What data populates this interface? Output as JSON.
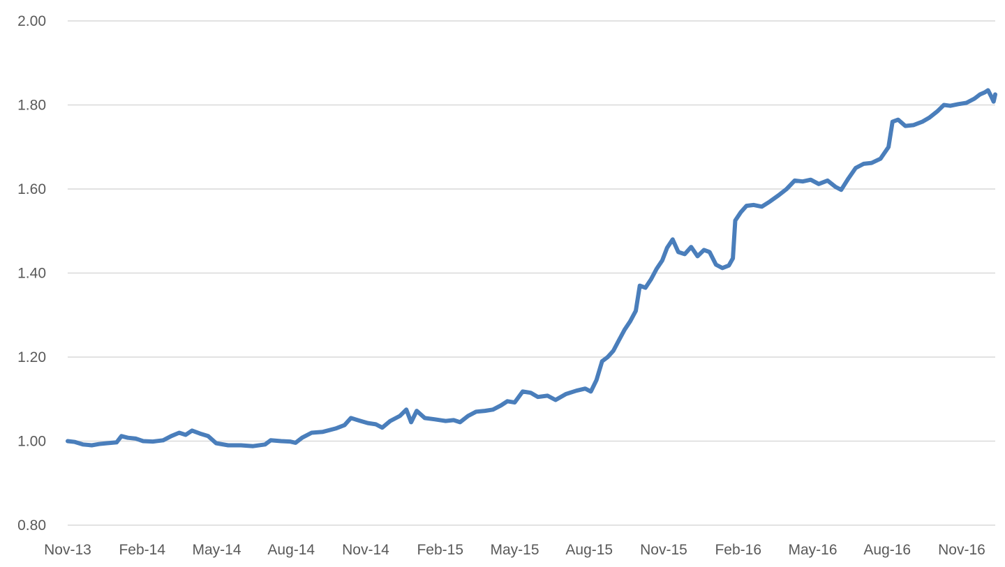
{
  "chart_data": {
    "type": "line",
    "title": "",
    "xlabel": "",
    "ylabel": "",
    "ylim": [
      0.8,
      2.0
    ],
    "y_ticks": [
      "0.80",
      "1.00",
      "1.20",
      "1.40",
      "1.60",
      "1.80",
      "2.00"
    ],
    "x_ticks": [
      "Nov-13",
      "Feb-14",
      "May-14",
      "Aug-14",
      "Nov-14",
      "Feb-15",
      "May-15",
      "Aug-15",
      "Nov-15",
      "Feb-16",
      "May-16",
      "Aug-16",
      "Nov-16"
    ],
    "x_range": [
      "2013-11-01",
      "2016-12-31"
    ],
    "grid": "horizontal",
    "legend": "none",
    "series_color": "#4a7ebb",
    "series": [
      {
        "points": [
          [
            "2013-11-01",
            1.0
          ],
          [
            "2013-11-10",
            0.998
          ],
          [
            "2013-11-20",
            0.992
          ],
          [
            "2013-12-01",
            0.99
          ],
          [
            "2013-12-10",
            0.993
          ],
          [
            "2013-12-20",
            0.995
          ],
          [
            "2014-01-01",
            0.997
          ],
          [
            "2014-01-07",
            1.012
          ],
          [
            "2014-01-15",
            1.008
          ],
          [
            "2014-01-25",
            1.006
          ],
          [
            "2014-02-03",
            1.0
          ],
          [
            "2014-02-15",
            0.999
          ],
          [
            "2014-02-28",
            1.002
          ],
          [
            "2014-03-10",
            1.012
          ],
          [
            "2014-03-20",
            1.02
          ],
          [
            "2014-03-28",
            1.015
          ],
          [
            "2014-04-05",
            1.025
          ],
          [
            "2014-04-15",
            1.018
          ],
          [
            "2014-04-25",
            1.012
          ],
          [
            "2014-05-05",
            0.995
          ],
          [
            "2014-05-20",
            0.99
          ],
          [
            "2014-06-05",
            0.99
          ],
          [
            "2014-06-20",
            0.988
          ],
          [
            "2014-07-05",
            0.992
          ],
          [
            "2014-07-12",
            1.002
          ],
          [
            "2014-07-25",
            1.0
          ],
          [
            "2014-08-05",
            0.999
          ],
          [
            "2014-08-12",
            0.996
          ],
          [
            "2014-08-20",
            1.008
          ],
          [
            "2014-09-01",
            1.02
          ],
          [
            "2014-09-15",
            1.022
          ],
          [
            "2014-10-01",
            1.03
          ],
          [
            "2014-10-12",
            1.038
          ],
          [
            "2014-10-20",
            1.055
          ],
          [
            "2014-11-01",
            1.048
          ],
          [
            "2014-11-10",
            1.043
          ],
          [
            "2014-11-20",
            1.04
          ],
          [
            "2014-11-28",
            1.032
          ],
          [
            "2014-12-08",
            1.048
          ],
          [
            "2014-12-20",
            1.06
          ],
          [
            "2014-12-28",
            1.075
          ],
          [
            "2015-01-03",
            1.045
          ],
          [
            "2015-01-10",
            1.072
          ],
          [
            "2015-01-20",
            1.055
          ],
          [
            "2015-02-01",
            1.052
          ],
          [
            "2015-02-15",
            1.048
          ],
          [
            "2015-02-25",
            1.05
          ],
          [
            "2015-03-05",
            1.045
          ],
          [
            "2015-03-15",
            1.06
          ],
          [
            "2015-03-25",
            1.07
          ],
          [
            "2015-04-05",
            1.072
          ],
          [
            "2015-04-15",
            1.075
          ],
          [
            "2015-04-25",
            1.085
          ],
          [
            "2015-05-03",
            1.095
          ],
          [
            "2015-05-12",
            1.092
          ],
          [
            "2015-05-22",
            1.118
          ],
          [
            "2015-06-01",
            1.115
          ],
          [
            "2015-06-10",
            1.105
          ],
          [
            "2015-06-22",
            1.108
          ],
          [
            "2015-07-02",
            1.098
          ],
          [
            "2015-07-15",
            1.112
          ],
          [
            "2015-07-28",
            1.12
          ],
          [
            "2015-08-08",
            1.125
          ],
          [
            "2015-08-15",
            1.118
          ],
          [
            "2015-08-22",
            1.145
          ],
          [
            "2015-08-29",
            1.19
          ],
          [
            "2015-09-05",
            1.2
          ],
          [
            "2015-09-12",
            1.215
          ],
          [
            "2015-09-19",
            1.24
          ],
          [
            "2015-09-26",
            1.265
          ],
          [
            "2015-10-03",
            1.285
          ],
          [
            "2015-10-10",
            1.31
          ],
          [
            "2015-10-15",
            1.37
          ],
          [
            "2015-10-22",
            1.365
          ],
          [
            "2015-10-29",
            1.385
          ],
          [
            "2015-11-05",
            1.41
          ],
          [
            "2015-11-12",
            1.43
          ],
          [
            "2015-11-18",
            1.46
          ],
          [
            "2015-11-25",
            1.48
          ],
          [
            "2015-12-02",
            1.45
          ],
          [
            "2015-12-10",
            1.445
          ],
          [
            "2015-12-18",
            1.462
          ],
          [
            "2015-12-26",
            1.44
          ],
          [
            "2016-01-03",
            1.455
          ],
          [
            "2016-01-10",
            1.45
          ],
          [
            "2016-01-18",
            1.42
          ],
          [
            "2016-01-26",
            1.412
          ],
          [
            "2016-02-03",
            1.418
          ],
          [
            "2016-02-08",
            1.435
          ],
          [
            "2016-02-11",
            1.525
          ],
          [
            "2016-02-18",
            1.545
          ],
          [
            "2016-02-25",
            1.56
          ],
          [
            "2016-03-05",
            1.562
          ],
          [
            "2016-03-15",
            1.558
          ],
          [
            "2016-03-25",
            1.57
          ],
          [
            "2016-04-05",
            1.585
          ],
          [
            "2016-04-15",
            1.6
          ],
          [
            "2016-04-25",
            1.62
          ],
          [
            "2016-05-05",
            1.618
          ],
          [
            "2016-05-15",
            1.622
          ],
          [
            "2016-05-25",
            1.612
          ],
          [
            "2016-06-05",
            1.62
          ],
          [
            "2016-06-15",
            1.605
          ],
          [
            "2016-06-22",
            1.598
          ],
          [
            "2016-07-01",
            1.625
          ],
          [
            "2016-07-10",
            1.65
          ],
          [
            "2016-07-20",
            1.66
          ],
          [
            "2016-07-30",
            1.662
          ],
          [
            "2016-08-10",
            1.672
          ],
          [
            "2016-08-20",
            1.7
          ],
          [
            "2016-08-25",
            1.76
          ],
          [
            "2016-09-01",
            1.765
          ],
          [
            "2016-09-10",
            1.75
          ],
          [
            "2016-09-20",
            1.752
          ],
          [
            "2016-10-01",
            1.76
          ],
          [
            "2016-10-10",
            1.77
          ],
          [
            "2016-10-20",
            1.785
          ],
          [
            "2016-10-28",
            1.8
          ],
          [
            "2016-11-05",
            1.798
          ],
          [
            "2016-11-15",
            1.802
          ],
          [
            "2016-11-25",
            1.805
          ],
          [
            "2016-12-05",
            1.815
          ],
          [
            "2016-12-12",
            1.825
          ],
          [
            "2016-12-18",
            1.83
          ],
          [
            "2016-12-22",
            1.835
          ],
          [
            "2016-12-26",
            1.82
          ],
          [
            "2016-12-29",
            1.808
          ],
          [
            "2016-12-31",
            1.825
          ]
        ]
      }
    ]
  }
}
